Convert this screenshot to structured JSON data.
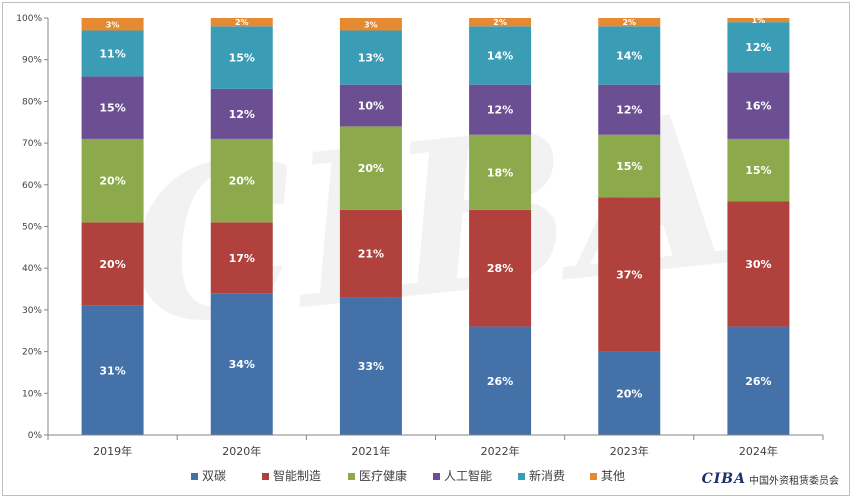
{
  "chart_data": {
    "type": "bar",
    "stacked": true,
    "percent": true,
    "categories": [
      "2019年",
      "2020年",
      "2021年",
      "2022年",
      "2023年",
      "2024年"
    ],
    "series": [
      {
        "name": "双碳",
        "color": "#4472a8",
        "values": [
          31,
          34,
          33,
          26,
          20,
          26
        ]
      },
      {
        "name": "智能制造",
        "color": "#b0413d",
        "values": [
          20,
          17,
          21,
          28,
          37,
          30
        ]
      },
      {
        "name": "医疗健康",
        "color": "#8caa4b",
        "values": [
          20,
          20,
          20,
          18,
          15,
          15
        ]
      },
      {
        "name": "人工智能",
        "color": "#6c4f92",
        "values": [
          15,
          12,
          10,
          12,
          12,
          16
        ]
      },
      {
        "name": "新消费",
        "color": "#3a9cb5",
        "values": [
          11,
          15,
          13,
          14,
          14,
          12
        ]
      },
      {
        "name": "其他",
        "color": "#e68a32",
        "values": [
          3,
          2,
          3,
          2,
          2,
          1
        ]
      }
    ],
    "ylim": [
      0,
      100
    ],
    "yticks": [
      "0%",
      "10%",
      "20%",
      "30%",
      "40%",
      "50%",
      "60%",
      "70%",
      "80%",
      "90%",
      "100%"
    ],
    "legend_position": "bottom",
    "grid": false
  },
  "watermark": "CIBA",
  "branding": {
    "logo": "CIBA",
    "text": "中国外资租赁委员会"
  }
}
